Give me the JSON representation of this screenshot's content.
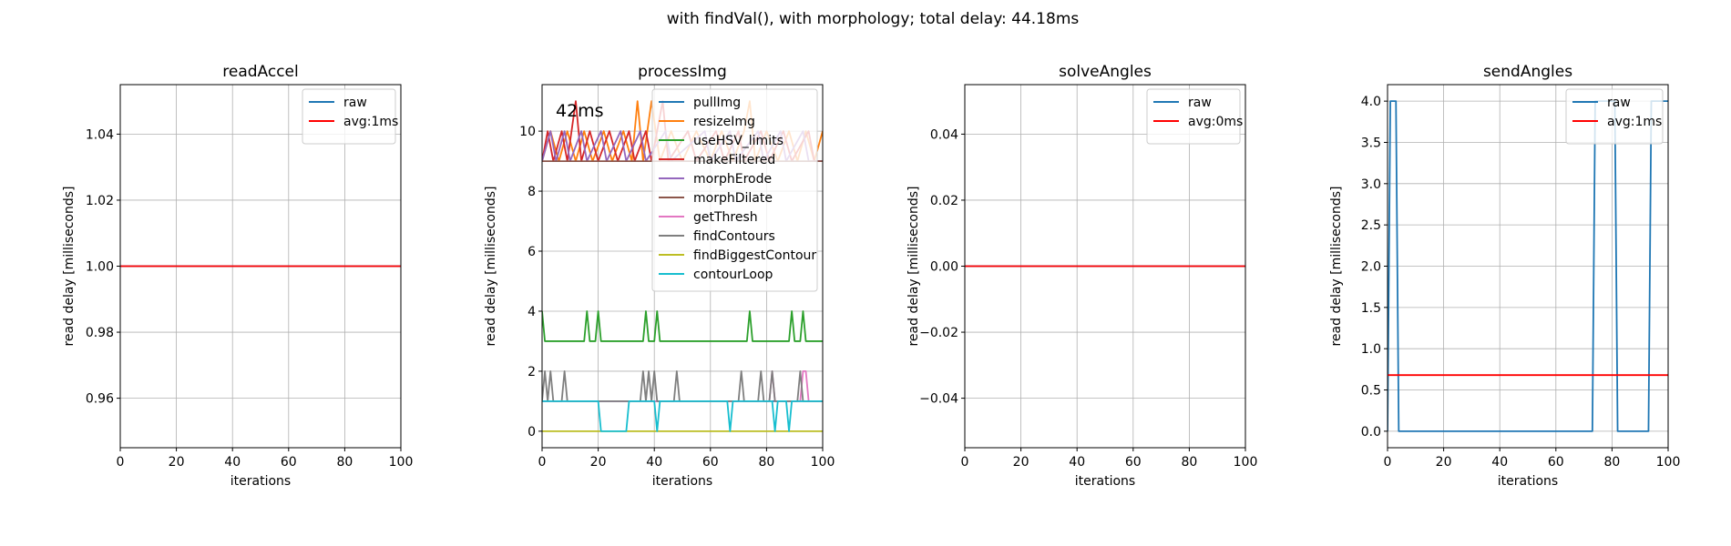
{
  "figure": {
    "suptitle": "with findVal(), with morphology; total delay: 44.18ms"
  },
  "chart_data": [
    {
      "type": "line",
      "title": "readAccel",
      "xlabel": "iterations",
      "ylabel": "read delay [milliseconds]",
      "xlim": [
        0,
        100
      ],
      "ylim": [
        0.945,
        1.055
      ],
      "xticks": [
        0,
        20,
        40,
        60,
        80,
        100
      ],
      "yticks": [
        0.96,
        0.98,
        1.0,
        1.02,
        1.04
      ],
      "ytick_labels": [
        "0.96",
        "0.98",
        "1.00",
        "1.02",
        "1.04"
      ],
      "grid": true,
      "legend_position": "upper right",
      "series": [
        {
          "name": "raw",
          "color": "#1f77b4",
          "segments": [
            [
              [
                0,
                1.0
              ],
              [
                100,
                1.0
              ]
            ]
          ]
        },
        {
          "name": "avg:1ms",
          "color": "#ff0000",
          "segments": [
            [
              [
                0,
                1.0
              ],
              [
                100,
                1.0
              ]
            ]
          ]
        }
      ]
    },
    {
      "type": "line",
      "title": "processImg",
      "xlabel": "iterations",
      "ylabel": "read delay [milliseconds]",
      "annotation": "42ms",
      "xlim": [
        0,
        100
      ],
      "ylim": [
        -0.55,
        11.55
      ],
      "xticks": [
        0,
        20,
        40,
        60,
        80,
        100
      ],
      "yticks": [
        0,
        2,
        4,
        6,
        8,
        10
      ],
      "ytick_labels": [
        "0",
        "2",
        "4",
        "6",
        "8",
        "10"
      ],
      "grid": true,
      "legend_position": "upper right",
      "series": [
        {
          "name": "pullImg",
          "color": "#1f77b4",
          "segments": [
            [
              [
                0,
                1
              ],
              [
                100,
                1
              ]
            ]
          ]
        },
        {
          "name": "resizeImg",
          "color": "#ff7f0e",
          "segments": [
            [
              [
                0,
                9
              ],
              [
                3,
                10
              ],
              [
                6,
                9
              ],
              [
                9,
                10
              ],
              [
                12,
                9
              ],
              [
                15,
                10
              ],
              [
                18,
                9
              ],
              [
                22,
                10
              ],
              [
                25,
                9
              ],
              [
                29,
                10
              ],
              [
                32,
                9
              ],
              [
                34,
                11
              ],
              [
                36,
                9
              ],
              [
                39,
                11
              ],
              [
                42,
                9
              ],
              [
                46,
                10
              ],
              [
                50,
                9
              ],
              [
                55,
                10
              ],
              [
                60,
                9
              ],
              [
                64,
                10
              ],
              [
                68,
                9
              ],
              [
                72,
                10
              ],
              [
                74,
                11
              ],
              [
                76,
                9
              ],
              [
                80,
                10
              ],
              [
                84,
                9
              ],
              [
                88,
                10
              ],
              [
                91,
                9
              ],
              [
                94,
                10
              ],
              [
                97,
                9
              ],
              [
                100,
                10
              ]
            ]
          ]
        },
        {
          "name": "useHSV_limits",
          "color": "#2ca02c",
          "segments": [
            [
              [
                0,
                4
              ],
              [
                1,
                3
              ],
              [
                15,
                3
              ],
              [
                16,
                4
              ],
              [
                17,
                3
              ],
              [
                19,
                3
              ],
              [
                20,
                4
              ],
              [
                21,
                3
              ],
              [
                36,
                3
              ],
              [
                37,
                4
              ],
              [
                38,
                3
              ],
              [
                40,
                3
              ],
              [
                41,
                4
              ],
              [
                42,
                3
              ],
              [
                73,
                3
              ],
              [
                74,
                4
              ],
              [
                75,
                3
              ],
              [
                88,
                3
              ],
              [
                89,
                4
              ],
              [
                90,
                3
              ],
              [
                92,
                3
              ],
              [
                93,
                4
              ],
              [
                94,
                3
              ],
              [
                100,
                3
              ]
            ]
          ]
        },
        {
          "name": "makeFiltered",
          "color": "#d62728",
          "segments": [
            [
              [
                0,
                9
              ],
              [
                2,
                10
              ],
              [
                4,
                9
              ],
              [
                7,
                10
              ],
              [
                9,
                9
              ],
              [
                12,
                11
              ],
              [
                14,
                9
              ],
              [
                17,
                10
              ],
              [
                20,
                9
              ],
              [
                24,
                10
              ],
              [
                27,
                9
              ],
              [
                31,
                10
              ],
              [
                33,
                9
              ],
              [
                37,
                10
              ],
              [
                39,
                9
              ],
              [
                43,
                11
              ],
              [
                45,
                9
              ],
              [
                52,
                10
              ],
              [
                55,
                9
              ],
              [
                62,
                10
              ],
              [
                65,
                9
              ],
              [
                70,
                10
              ],
              [
                72,
                9
              ],
              [
                78,
                10
              ],
              [
                81,
                9
              ],
              [
                86,
                10
              ],
              [
                89,
                9
              ],
              [
                95,
                10
              ],
              [
                97,
                9
              ],
              [
                100,
                9
              ]
            ]
          ]
        },
        {
          "name": "morphErode",
          "color": "#9467bd",
          "segments": [
            [
              [
                0,
                9
              ],
              [
                3,
                10
              ],
              [
                5,
                9
              ],
              [
                8,
                10
              ],
              [
                10,
                9
              ],
              [
                14,
                10
              ],
              [
                16,
                9
              ],
              [
                21,
                10
              ],
              [
                23,
                9
              ],
              [
                28,
                10
              ],
              [
                30,
                9
              ],
              [
                35,
                10
              ],
              [
                37,
                9
              ],
              [
                44,
                10
              ],
              [
                46,
                9
              ],
              [
                58,
                10
              ],
              [
                60,
                9
              ],
              [
                67,
                10
              ],
              [
                69,
                9
              ],
              [
                77,
                10
              ],
              [
                79,
                9
              ],
              [
                85,
                10
              ],
              [
                87,
                9
              ],
              [
                93,
                10
              ],
              [
                95,
                9
              ],
              [
                100,
                9
              ]
            ]
          ]
        },
        {
          "name": "morphDilate",
          "color": "#8c564b",
          "segments": [
            [
              [
                0,
                9
              ],
              [
                100,
                9
              ]
            ]
          ]
        },
        {
          "name": "getThresh",
          "color": "#e377c2",
          "segments": [
            [
              [
                0,
                1
              ],
              [
                81,
                1
              ],
              [
                82,
                2
              ],
              [
                83,
                1
              ],
              [
                92,
                1
              ],
              [
                93,
                2
              ],
              [
                94,
                2
              ],
              [
                95,
                1
              ],
              [
                100,
                1
              ]
            ]
          ]
        },
        {
          "name": "findContours",
          "color": "#7f7f7f",
          "segments": [
            [
              [
                0,
                1
              ],
              [
                1,
                2
              ],
              [
                2,
                1
              ],
              [
                3,
                2
              ],
              [
                4,
                1
              ],
              [
                7,
                1
              ],
              [
                8,
                2
              ],
              [
                9,
                1
              ],
              [
                35,
                1
              ],
              [
                36,
                2
              ],
              [
                37,
                1
              ],
              [
                38,
                2
              ],
              [
                39,
                1
              ],
              [
                40,
                2
              ],
              [
                41,
                1
              ],
              [
                47,
                1
              ],
              [
                48,
                2
              ],
              [
                49,
                1
              ],
              [
                70,
                1
              ],
              [
                71,
                2
              ],
              [
                72,
                1
              ],
              [
                77,
                1
              ],
              [
                78,
                2
              ],
              [
                79,
                1
              ],
              [
                81,
                1
              ],
              [
                82,
                2
              ],
              [
                83,
                1
              ],
              [
                91,
                1
              ],
              [
                92,
                2
              ],
              [
                93,
                1
              ],
              [
                100,
                1
              ]
            ]
          ]
        },
        {
          "name": "findBiggestContour",
          "color": "#bcbd22",
          "segments": [
            [
              [
                0,
                0
              ],
              [
                100,
                0
              ]
            ]
          ]
        },
        {
          "name": "contourLoop",
          "color": "#17becf",
          "segments": [
            [
              [
                0,
                1
              ],
              [
                20,
                1
              ],
              [
                21,
                0
              ],
              [
                30,
                0
              ],
              [
                31,
                1
              ],
              [
                40,
                1
              ],
              [
                41,
                0
              ],
              [
                42,
                1
              ],
              [
                66,
                1
              ],
              [
                67,
                0
              ],
              [
                68,
                1
              ],
              [
                82,
                1
              ],
              [
                83,
                0
              ],
              [
                84,
                1
              ],
              [
                87,
                1
              ],
              [
                88,
                0
              ],
              [
                89,
                1
              ],
              [
                100,
                1
              ]
            ]
          ]
        }
      ]
    },
    {
      "type": "line",
      "title": "solveAngles",
      "xlabel": "iterations",
      "ylabel": "read delay [milliseconds]",
      "xlim": [
        0,
        100
      ],
      "ylim": [
        -0.055,
        0.055
      ],
      "xticks": [
        0,
        20,
        40,
        60,
        80,
        100
      ],
      "yticks": [
        -0.04,
        -0.02,
        0.0,
        0.02,
        0.04
      ],
      "ytick_labels": [
        "−0.04",
        "−0.02",
        "0.00",
        "0.02",
        "0.04"
      ],
      "grid": true,
      "legend_position": "upper right",
      "series": [
        {
          "name": "raw",
          "color": "#1f77b4",
          "segments": [
            [
              [
                0,
                0
              ],
              [
                100,
                0
              ]
            ]
          ]
        },
        {
          "name": "avg:0ms",
          "color": "#ff0000",
          "segments": [
            [
              [
                0,
                0
              ],
              [
                100,
                0
              ]
            ]
          ]
        }
      ]
    },
    {
      "type": "line",
      "title": "sendAngles",
      "xlabel": "iterations",
      "ylabel": "read delay [milliseconds]",
      "xlim": [
        0,
        100
      ],
      "ylim": [
        -0.2,
        4.2
      ],
      "xticks": [
        0,
        20,
        40,
        60,
        80,
        100
      ],
      "yticks": [
        0.0,
        0.5,
        1.0,
        1.5,
        2.0,
        2.5,
        3.0,
        3.5,
        4.0
      ],
      "ytick_labels": [
        "0.0",
        "0.5",
        "1.0",
        "1.5",
        "2.0",
        "2.5",
        "3.0",
        "3.5",
        "4.0"
      ],
      "grid": true,
      "legend_position": "upper right",
      "series": [
        {
          "name": "raw",
          "color": "#1f77b4",
          "segments": [
            [
              [
                0,
                0
              ],
              [
                1,
                4
              ],
              [
                3,
                4
              ],
              [
                4,
                0
              ],
              [
                73,
                0
              ],
              [
                74,
                4
              ],
              [
                81,
                4
              ],
              [
                82,
                0
              ],
              [
                93,
                0
              ],
              [
                94,
                4
              ],
              [
                100,
                4
              ]
            ]
          ]
        },
        {
          "name": "avg:1ms",
          "color": "#ff0000",
          "segments": [
            [
              [
                0,
                0.68
              ],
              [
                100,
                0.68
              ]
            ]
          ]
        }
      ]
    }
  ]
}
